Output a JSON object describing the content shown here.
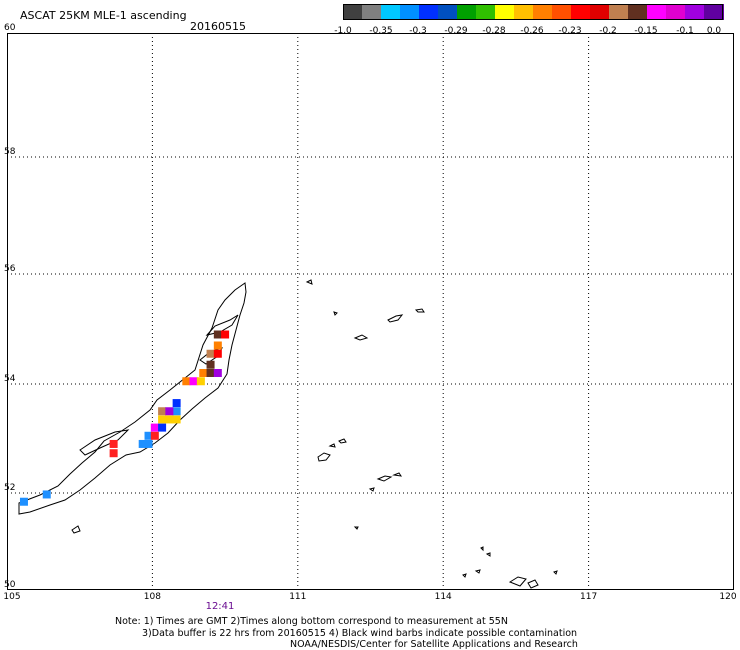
{
  "header": {
    "title": "ASCAT 25KM MLE-1 ascending",
    "date": "20160515"
  },
  "colorbar": {
    "colors": [
      "#404040",
      "#808080",
      "#00c8ff",
      "#0090ff",
      "#0030ff",
      "#0050c0",
      "#00a000",
      "#30c000",
      "#ffff00",
      "#ffc000",
      "#ff8000",
      "#ff5000",
      "#ff0000",
      "#e00000",
      "#c08050",
      "#603020",
      "#ff00ff",
      "#e000d0",
      "#a000e0",
      "#6000a0"
    ],
    "labels": [
      "-1.0",
      "-0.35",
      "-0.3",
      "-0.29",
      "-0.28",
      "-0.26",
      "-0.23",
      "-0.2",
      "-0.15",
      "-0.1",
      "0.0"
    ]
  },
  "map": {
    "lat_labels": [
      "50",
      "52",
      "54",
      "56",
      "58",
      "60"
    ],
    "lon_labels": [
      "105",
      "108",
      "111",
      "114",
      "117",
      "120"
    ],
    "time_label": "12:41",
    "grid": true
  },
  "pixels": [
    {
      "lon": 105.35,
      "lat": 51.82,
      "color": "#1e90ff"
    },
    {
      "lon": 105.82,
      "lat": 51.97,
      "color": "#1e90ff"
    },
    {
      "lon": 107.2,
      "lat": 52.73,
      "color": "#ff2020"
    },
    {
      "lon": 107.2,
      "lat": 52.9,
      "color": "#ff2020"
    },
    {
      "lon": 107.8,
      "lat": 52.9,
      "color": "#1e90ff"
    },
    {
      "lon": 107.92,
      "lat": 52.9,
      "color": "#1e90ff"
    },
    {
      "lon": 107.92,
      "lat": 53.05,
      "color": "#1e90ff"
    },
    {
      "lon": 108.05,
      "lat": 53.05,
      "color": "#ff2020"
    },
    {
      "lon": 108.05,
      "lat": 53.2,
      "color": "#ff00ff"
    },
    {
      "lon": 108.2,
      "lat": 53.2,
      "color": "#0030ff"
    },
    {
      "lon": 108.2,
      "lat": 53.35,
      "color": "#ffd000"
    },
    {
      "lon": 108.35,
      "lat": 53.35,
      "color": "#ffd000"
    },
    {
      "lon": 108.5,
      "lat": 53.35,
      "color": "#ffd000"
    },
    {
      "lon": 108.5,
      "lat": 53.5,
      "color": "#1e90ff"
    },
    {
      "lon": 108.2,
      "lat": 53.5,
      "color": "#c08050"
    },
    {
      "lon": 108.35,
      "lat": 53.5,
      "color": "#a000e0"
    },
    {
      "lon": 108.5,
      "lat": 53.65,
      "color": "#0030ff"
    },
    {
      "lon": 108.7,
      "lat": 54.05,
      "color": "#ff8000"
    },
    {
      "lon": 108.85,
      "lat": 54.05,
      "color": "#ff00ff"
    },
    {
      "lon": 109.0,
      "lat": 54.05,
      "color": "#ffd000"
    },
    {
      "lon": 109.05,
      "lat": 54.2,
      "color": "#ff8000"
    },
    {
      "lon": 109.2,
      "lat": 54.2,
      "color": "#603020"
    },
    {
      "lon": 109.35,
      "lat": 54.2,
      "color": "#a000e0"
    },
    {
      "lon": 109.2,
      "lat": 54.35,
      "color": "#603020"
    },
    {
      "lon": 109.2,
      "lat": 54.55,
      "color": "#c08050"
    },
    {
      "lon": 109.35,
      "lat": 54.55,
      "color": "#ff0000"
    },
    {
      "lon": 109.35,
      "lat": 54.7,
      "color": "#ff8000"
    },
    {
      "lon": 109.35,
      "lat": 54.9,
      "color": "#603020"
    },
    {
      "lon": 109.5,
      "lat": 54.9,
      "color": "#ff0000"
    }
  ],
  "notes": [
    "Note: 1) Times are GMT 2)Times along bottom correspond to measurement at 55N",
    "3)Data buffer is 22 hrs from 20160515 4) Black wind barbs indicate possible contamination",
    "NOAA/NESDIS/Center for Satellite Applications and Research"
  ]
}
